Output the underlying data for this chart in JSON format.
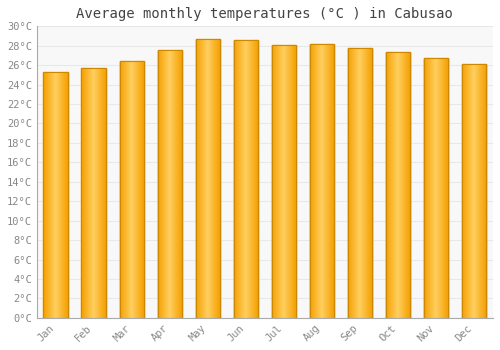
{
  "title": "Average monthly temperatures (°C ) in Cabusao",
  "months": [
    "Jan",
    "Feb",
    "Mar",
    "Apr",
    "May",
    "Jun",
    "Jul",
    "Aug",
    "Sep",
    "Oct",
    "Nov",
    "Dec"
  ],
  "values": [
    25.3,
    25.7,
    26.4,
    27.6,
    28.7,
    28.6,
    28.1,
    28.2,
    27.8,
    27.4,
    26.7,
    26.1
  ],
  "bar_color_center": "#FFD060",
  "bar_color_edge": "#F5A000",
  "ylim": [
    0,
    30
  ],
  "yticks": [
    0,
    2,
    4,
    6,
    8,
    10,
    12,
    14,
    16,
    18,
    20,
    22,
    24,
    26,
    28,
    30
  ],
  "ytick_labels": [
    "0°C",
    "2°C",
    "4°C",
    "6°C",
    "8°C",
    "10°C",
    "12°C",
    "14°C",
    "16°C",
    "18°C",
    "20°C",
    "22°C",
    "24°C",
    "26°C",
    "28°C",
    "30°C"
  ],
  "background_color": "#ffffff",
  "plot_bg_color": "#f8f8f8",
  "grid_color": "#e8e8e8",
  "title_fontsize": 10,
  "tick_fontsize": 7.5,
  "bar_outline_color": "#CC8800",
  "bar_width": 0.65,
  "tick_color": "#888888"
}
